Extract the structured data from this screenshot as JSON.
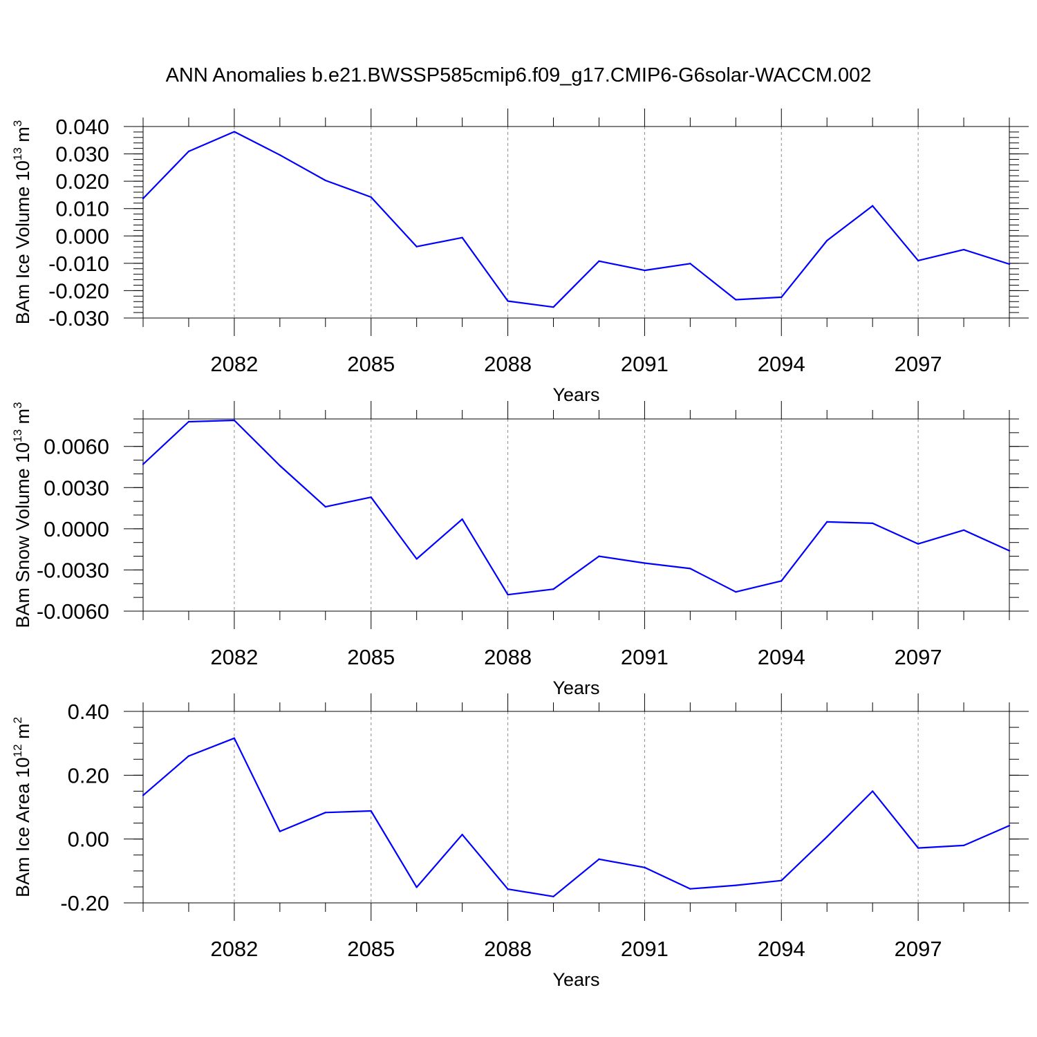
{
  "title": "ANN Anomalies b.e21.BWSSP585cmip6.f09_g17.CMIP6-G6solar-WACCM.002",
  "colors": {
    "series": "#0000ff",
    "grid": "#8c8c8c",
    "axis": "#000000"
  },
  "chart_data": [
    {
      "type": "line",
      "ylabel": "BAm Ice Volume 10",
      "ylabel_exp": "13",
      "ylabel_unit": " m",
      "ylabel_unit_exp": "3",
      "xlabel": "Years",
      "xlim": [
        2080,
        2099
      ],
      "ylim": [
        -0.03,
        0.04
      ],
      "x_ticks": [
        2082,
        2085,
        2088,
        2091,
        2094,
        2097
      ],
      "x_tick_labels": [
        "2082",
        "2085",
        "2088",
        "2091",
        "2094",
        "2097"
      ],
      "y_ticks": [
        0.04,
        0.03,
        0.02,
        0.01,
        0.0,
        -0.01,
        -0.02,
        -0.03
      ],
      "y_tick_labels": [
        "0.040",
        "0.030",
        "0.020",
        "0.010",
        "0.000",
        "-0.010",
        "-0.020",
        "-0.030"
      ],
      "y_minor_step": 0.002,
      "grid": "dashed vertical at major x ticks",
      "x": [
        2080,
        2081,
        2082,
        2083,
        2084,
        2085,
        2086,
        2087,
        2088,
        2089,
        2090,
        2091,
        2092,
        2093,
        2094,
        2095,
        2096,
        2097,
        2098,
        2099
      ],
      "values": [
        0.0137,
        0.0309,
        0.0381,
        0.0296,
        0.0203,
        0.0142,
        -0.0039,
        -0.0006,
        -0.0238,
        -0.026,
        -0.0092,
        -0.0126,
        -0.0101,
        -0.0233,
        -0.0224,
        -0.0017,
        0.011,
        -0.009,
        -0.005,
        -0.0103
      ]
    },
    {
      "type": "line",
      "ylabel": "BAm Snow Volume 10",
      "ylabel_exp": "13",
      "ylabel_unit": " m",
      "ylabel_unit_exp": "3",
      "xlabel": "Years",
      "xlim": [
        2080,
        2099
      ],
      "ylim": [
        -0.006,
        0.008
      ],
      "x_ticks": [
        2082,
        2085,
        2088,
        2091,
        2094,
        2097
      ],
      "x_tick_labels": [
        "2082",
        "2085",
        "2088",
        "2091",
        "2094",
        "2097"
      ],
      "y_ticks": [
        0.006,
        0.003,
        0.0,
        -0.003,
        -0.006
      ],
      "y_tick_labels": [
        "0.0060",
        "0.0030",
        "0.0000",
        "-0.0030",
        "-0.0060"
      ],
      "y_minor_step": 0.001,
      "grid": "dashed vertical at major x ticks",
      "x": [
        2080,
        2081,
        2082,
        2083,
        2084,
        2085,
        2086,
        2087,
        2088,
        2089,
        2090,
        2091,
        2092,
        2093,
        2094,
        2095,
        2096,
        2097,
        2098,
        2099
      ],
      "values": [
        0.0047,
        0.0078,
        0.0079,
        0.0046,
        0.0016,
        0.0023,
        -0.0022,
        0.0007,
        -0.0048,
        -0.0044,
        -0.002,
        -0.0025,
        -0.0029,
        -0.0046,
        -0.0038,
        0.0005,
        0.0004,
        -0.0011,
        -0.0001,
        -0.0016
      ]
    },
    {
      "type": "line",
      "ylabel": "BAm Ice Area 10",
      "ylabel_exp": "12",
      "ylabel_unit": " m",
      "ylabel_unit_exp": "2",
      "xlabel": "Years",
      "xlim": [
        2080,
        2099
      ],
      "ylim": [
        -0.2,
        0.4
      ],
      "x_ticks": [
        2082,
        2085,
        2088,
        2091,
        2094,
        2097
      ],
      "x_tick_labels": [
        "2082",
        "2085",
        "2088",
        "2091",
        "2094",
        "2097"
      ],
      "y_ticks": [
        0.4,
        0.2,
        0.0,
        -0.2
      ],
      "y_tick_labels": [
        "0.40",
        "0.20",
        "0.00",
        "-0.20"
      ],
      "y_minor_step": 0.05,
      "grid": "dashed vertical at major x ticks",
      "x": [
        2080,
        2081,
        2082,
        2083,
        2084,
        2085,
        2086,
        2087,
        2088,
        2089,
        2090,
        2091,
        2092,
        2093,
        2094,
        2095,
        2096,
        2097,
        2098,
        2099
      ],
      "values": [
        0.137,
        0.26,
        0.316,
        0.024,
        0.083,
        0.088,
        -0.151,
        0.014,
        -0.157,
        -0.18,
        -0.063,
        -0.089,
        -0.156,
        -0.145,
        -0.13,
        0.007,
        0.15,
        -0.028,
        -0.02,
        0.042
      ]
    }
  ]
}
